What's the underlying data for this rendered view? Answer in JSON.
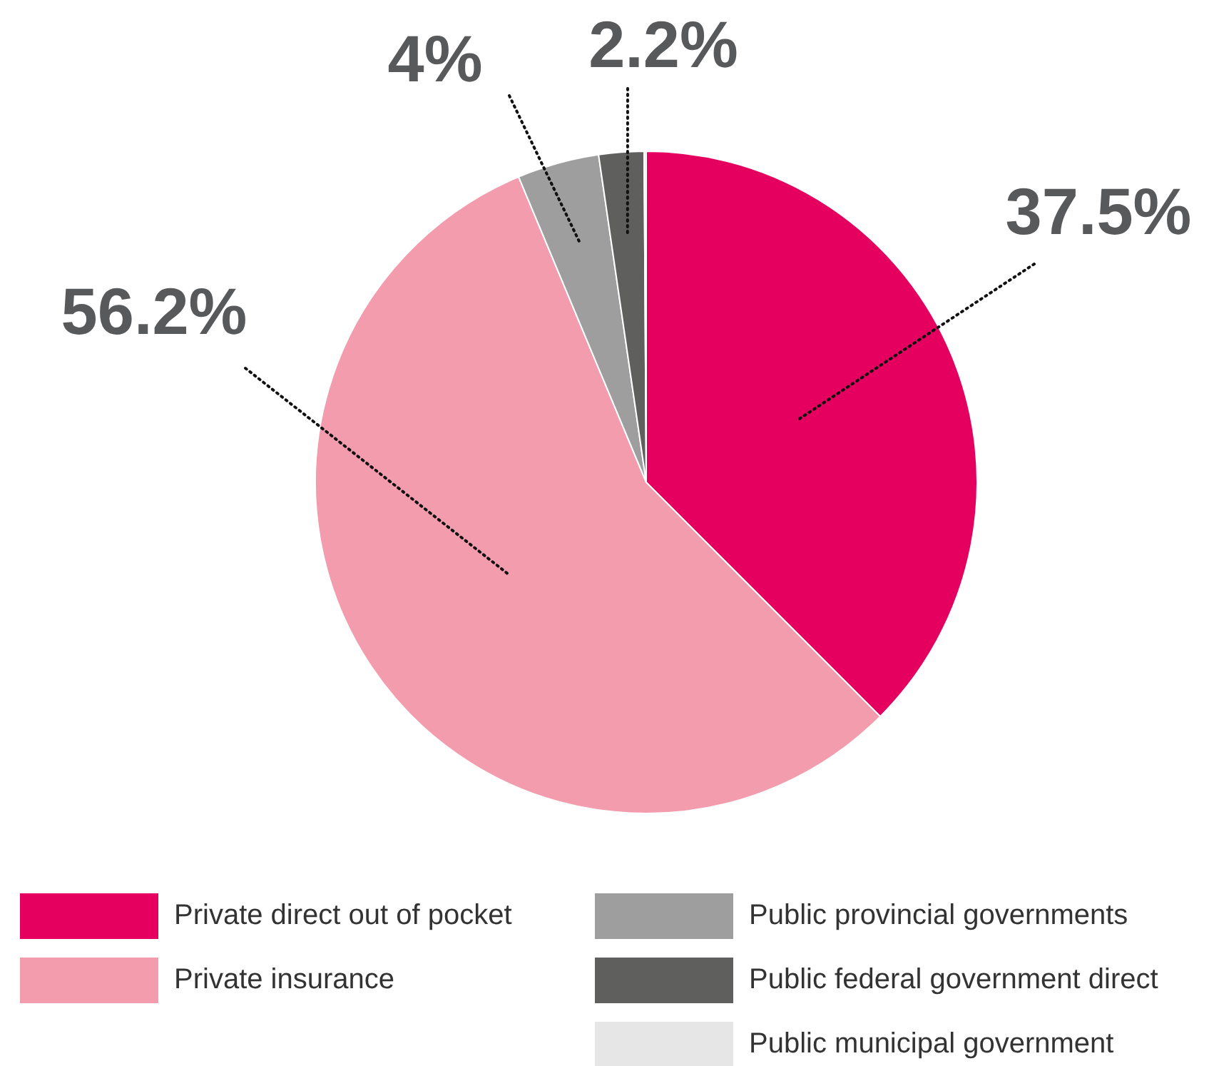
{
  "chart_data": {
    "type": "pie",
    "categories": [
      "Private direct out of pocket",
      "Private insurance",
      "Public provincial governments",
      "Public federal government direct",
      "Public municipal government"
    ],
    "values": [
      37.5,
      56.2,
      4,
      2.2,
      0.1
    ],
    "colors": [
      "#e5005f",
      "#f29cad",
      "#9d9e9d",
      "#5f5f5e",
      "#e6e6e6"
    ],
    "value_labels": [
      "37.5%",
      "56.2%",
      "4%",
      "2.2%",
      null
    ],
    "legend": "bottom"
  }
}
